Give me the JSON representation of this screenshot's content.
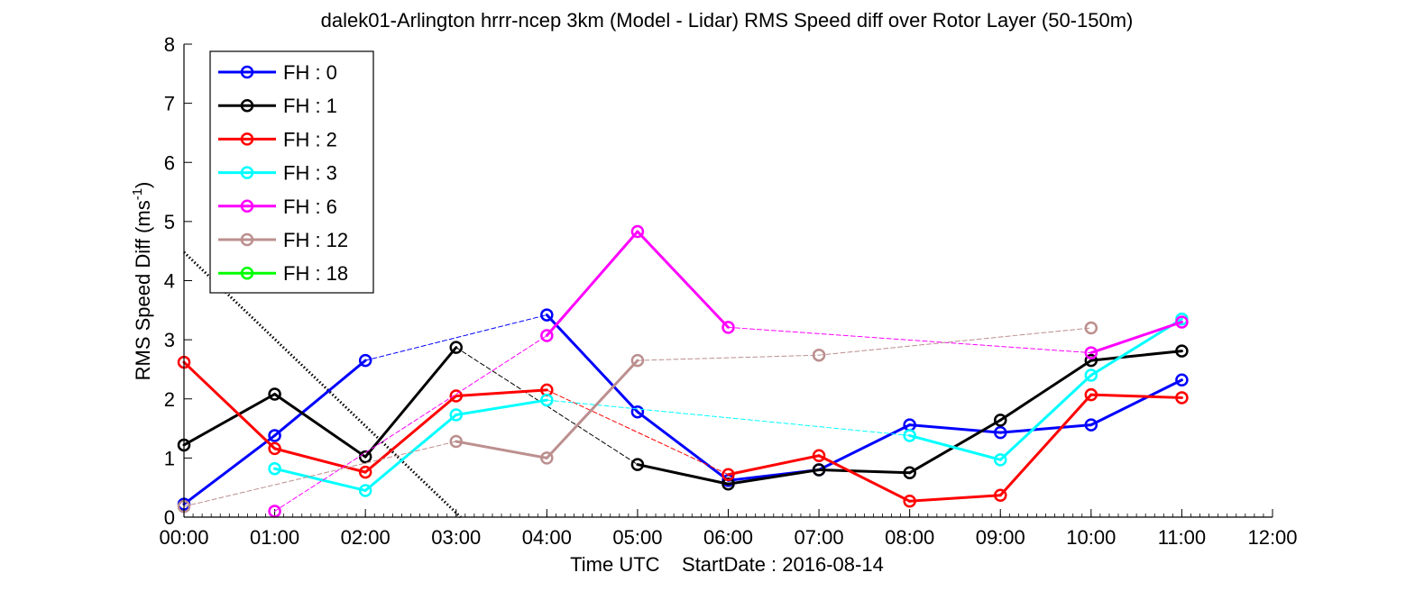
{
  "chart_data": {
    "type": "line",
    "title": "dalek01-Arlington hrrr-ncep 3km (Model - Lidar) RMS Speed diff over Rotor Layer (50-150m)",
    "ylabel_main": "RMS Speed Diff (ms",
    "ylabel_sup": "-1",
    "ylabel_close": ")",
    "xlabel": "Time UTC    StartDate : 2016-08-14",
    "x_ticks": [
      "00:00",
      "01:00",
      "02:00",
      "03:00",
      "04:00",
      "05:00",
      "06:00",
      "07:00",
      "08:00",
      "09:00",
      "10:00",
      "11:00",
      "12:00"
    ],
    "y_ticks": [
      "0",
      "1",
      "2",
      "3",
      "4",
      "5",
      "6",
      "7",
      "8"
    ],
    "xlim": [
      0,
      12
    ],
    "ylim": [
      0,
      8
    ],
    "legend_position": "top-left",
    "series": [
      {
        "name": "FH : 0",
        "color": "#0000ff",
        "points": [
          [
            0,
            0.22
          ],
          [
            1,
            1.38
          ],
          [
            2,
            2.65
          ],
          [
            4,
            3.42
          ],
          [
            5,
            1.78
          ],
          [
            6,
            0.62
          ],
          [
            7,
            0.8
          ],
          [
            8,
            1.56
          ],
          [
            9,
            1.43
          ],
          [
            10,
            1.56
          ],
          [
            11,
            2.32
          ]
        ]
      },
      {
        "name": "FH : 1",
        "color": "#000000",
        "points": [
          [
            0,
            1.22
          ],
          [
            1,
            2.08
          ],
          [
            2,
            1.02
          ],
          [
            3,
            2.87
          ],
          [
            5,
            0.89
          ],
          [
            6,
            0.56
          ],
          [
            7,
            0.8
          ],
          [
            8,
            0.75
          ],
          [
            9,
            1.64
          ],
          [
            10,
            2.65
          ],
          [
            11,
            2.81
          ]
        ]
      },
      {
        "name": "FH : 2",
        "color": "#ff0000",
        "points": [
          [
            0,
            2.62
          ],
          [
            1,
            1.16
          ],
          [
            2,
            0.76
          ],
          [
            3,
            2.05
          ],
          [
            4,
            2.15
          ],
          [
            6,
            0.72
          ],
          [
            7,
            1.04
          ],
          [
            8,
            0.27
          ],
          [
            9,
            0.37
          ],
          [
            10,
            2.07
          ],
          [
            11,
            2.02
          ]
        ]
      },
      {
        "name": "FH : 3",
        "color": "#00ffff",
        "points": [
          [
            1,
            0.82
          ],
          [
            2,
            0.45
          ],
          [
            3,
            1.73
          ],
          [
            4,
            1.98
          ],
          [
            8,
            1.38
          ],
          [
            9,
            0.97
          ],
          [
            10,
            2.4
          ],
          [
            11,
            3.35
          ]
        ]
      },
      {
        "name": "FH : 6",
        "color": "#ff00ff",
        "points": [
          [
            1,
            0.1
          ],
          [
            4,
            3.07
          ],
          [
            5,
            4.83
          ],
          [
            6,
            3.21
          ],
          [
            10,
            2.78
          ],
          [
            11,
            3.3
          ]
        ]
      },
      {
        "name": "FH : 12",
        "color": "#bc8f8f",
        "points": [
          [
            0,
            0.18
          ],
          [
            3,
            1.28
          ],
          [
            4,
            1.0
          ],
          [
            5,
            2.65
          ],
          [
            7,
            2.74
          ],
          [
            10,
            3.2
          ]
        ]
      },
      {
        "name": "FH : 18",
        "color": "#00ff00",
        "points": []
      }
    ],
    "reference_line": {
      "style": "dotted",
      "color": "#000000",
      "points": [
        [
          0,
          4.48
        ],
        [
          3.05,
          0
        ]
      ]
    }
  }
}
